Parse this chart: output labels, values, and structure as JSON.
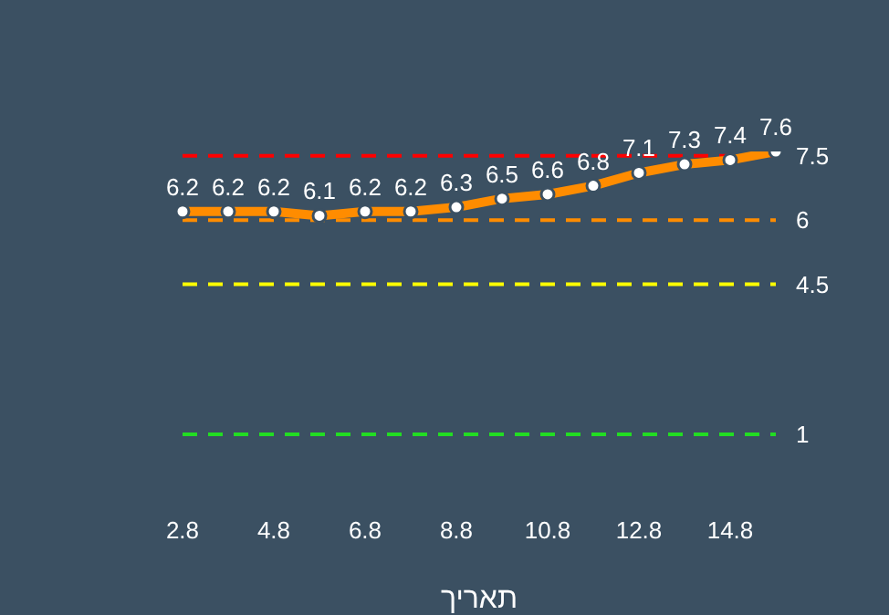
{
  "chart_data": {
    "type": "line",
    "xlabel": "תאריך",
    "categories": [
      "2.8",
      null,
      "4.8",
      null,
      "6.8",
      null,
      "8.8",
      null,
      "10.8",
      null,
      "12.8",
      null,
      "14.8",
      null
    ],
    "series": [
      {
        "color": "#ff8c00",
        "values": [
          6.2,
          6.2,
          6.2,
          6.1,
          6.2,
          6.2,
          6.3,
          6.5,
          6.6,
          6.8,
          7.1,
          7.3,
          7.4,
          7.6
        ]
      }
    ],
    "tick_labels": "x",
    "data_labels": true,
    "marker": "circle",
    "line_style": "solid",
    "grid": false,
    "legend": false,
    "ref_lines": [
      {
        "axis": "y",
        "value": 7.5,
        "label": "7.5",
        "color": "#ff0000",
        "line_style": "dashed"
      },
      {
        "axis": "y",
        "value": 6,
        "label": "6",
        "color": "#ff8c00",
        "line_style": "dashed"
      },
      {
        "axis": "y",
        "value": 4.5,
        "label": "4.5",
        "color": "#ffff00",
        "line_style": "dashed"
      },
      {
        "axis": "y",
        "value": 1,
        "label": "1",
        "color": "#22dd22",
        "line_style": "dashed"
      }
    ]
  }
}
